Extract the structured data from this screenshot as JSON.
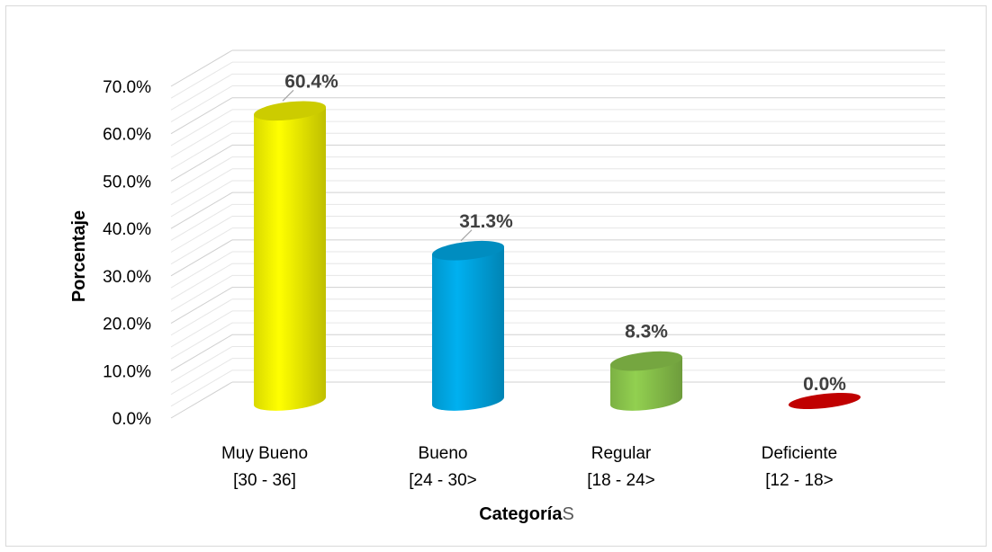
{
  "chart_data": {
    "type": "bar",
    "style": "3d-cylinder",
    "categories": [
      [
        "Muy Bueno",
        "[30 - 36]"
      ],
      [
        "Bueno",
        "[24 - 30>"
      ],
      [
        "Regular",
        "[18 - 24>"
      ],
      [
        "Deficiente",
        "[12 - 18>"
      ]
    ],
    "values": [
      60.4,
      31.3,
      8.3,
      0.0
    ],
    "data_labels": [
      "60.4%",
      "31.3%",
      "8.3%",
      "0.0%"
    ],
    "colors": [
      "#ffff00",
      "#00b0f0",
      "#92d050",
      "#c00000"
    ],
    "ylabel": "Porcentaje",
    "xlabel_main": "Categoría",
    "xlabel_suffix": "S",
    "ylim": [
      0,
      70
    ],
    "yticks": [
      "0.0%",
      "10.0%",
      "20.0%",
      "30.0%",
      "40.0%",
      "50.0%",
      "60.0%",
      "70.0%"
    ],
    "ytick_values": [
      0,
      10,
      20,
      30,
      40,
      50,
      60,
      70
    ],
    "grid": true,
    "legend": "none"
  }
}
